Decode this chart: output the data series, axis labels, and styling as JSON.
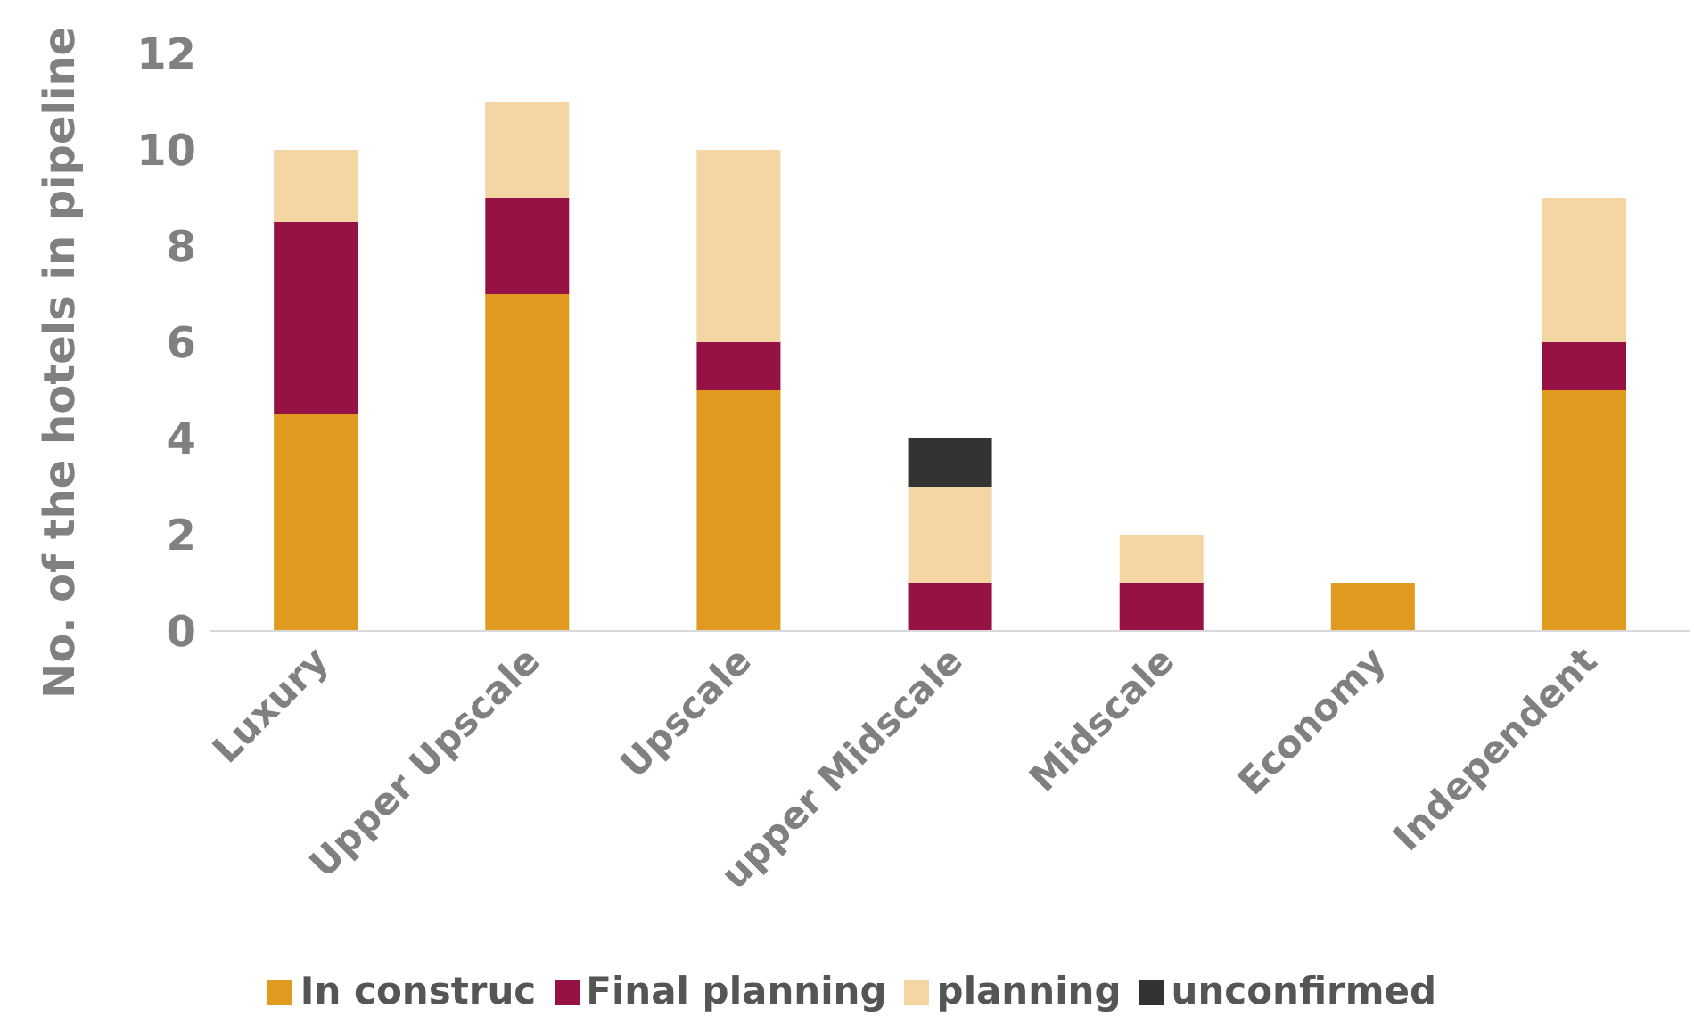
{
  "chart_data": {
    "type": "bar",
    "stacked": true,
    "ylabel": "No. of the hotels in pipeline",
    "categories": [
      "Luxury",
      "Upper Upscale",
      "Upscale",
      "upper Midscale",
      "Midscale",
      "Economy",
      "Independent"
    ],
    "series": [
      {
        "name": "In construc",
        "color": "#e09a1f",
        "values": [
          4.5,
          7,
          5,
          0,
          0,
          1,
          5
        ]
      },
      {
        "name": "Final planning",
        "color": "#961245",
        "values": [
          4,
          2,
          1,
          1,
          1,
          0,
          1
        ]
      },
      {
        "name": "planning",
        "color": "#f3d6a4",
        "values": [
          1.5,
          2,
          4,
          2,
          1,
          0,
          3
        ]
      },
      {
        "name": "unconfirmed",
        "color": "#333333",
        "values": [
          0,
          0,
          0,
          1,
          0,
          0,
          0
        ]
      }
    ],
    "ylim": [
      0,
      12
    ],
    "yticks": [
      0,
      2,
      4,
      6,
      8,
      10,
      12
    ],
    "grid": false,
    "legend": "bottom"
  }
}
